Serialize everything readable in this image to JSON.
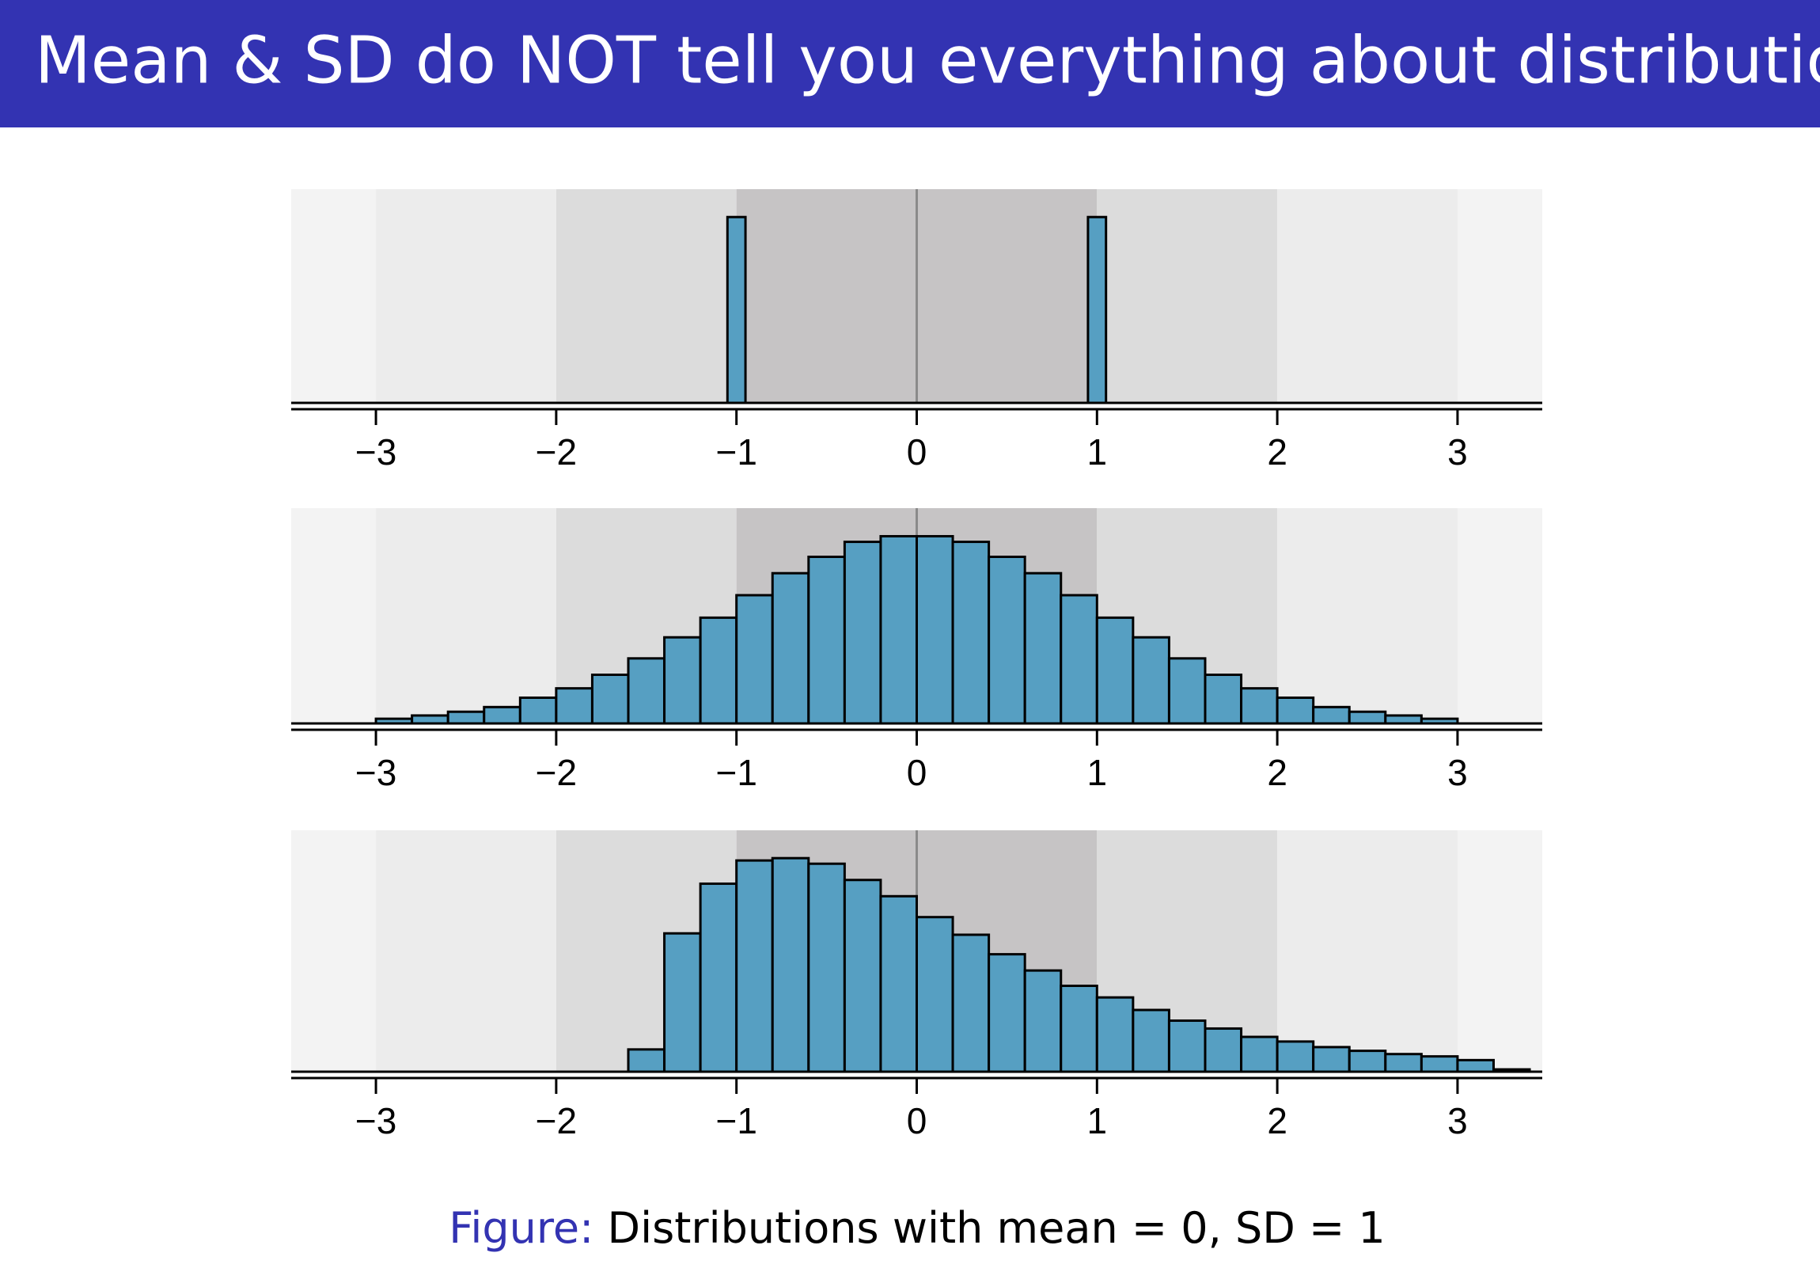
{
  "slide_title": "Mean & SD do NOT tell you everything about distribution",
  "caption": {
    "label": "Figure:",
    "text": "Distributions with mean = 0, SD = 1"
  },
  "chart_data": [
    {
      "type": "histogram",
      "color": "#569fc2",
      "bins": [
        -1.05,
        -0.95,
        -0.85,
        -0.75,
        -0.65,
        -0.55,
        -0.45,
        -0.35,
        -0.25,
        -0.15,
        -0.05,
        0.05,
        0.15,
        0.25,
        0.35,
        0.45,
        0.55,
        0.65,
        0.75,
        0.85,
        0.95,
        1.05
      ],
      "values": [
        0.4,
        0,
        0,
        0,
        0,
        0,
        0,
        0,
        0,
        0,
        0,
        0,
        0,
        0,
        0,
        0,
        0,
        0,
        0,
        0,
        0.4
      ],
      "xlim": [
        -3.47,
        3.47
      ],
      "ylim": [
        0,
        0.46
      ],
      "xticks": [
        {
          "value": -3,
          "label": "−3"
        },
        {
          "value": -2,
          "label": "−2"
        },
        {
          "value": -1,
          "label": "−1"
        },
        0,
        1,
        2,
        3
      ],
      "band_colors": [
        "#c6c4c5",
        "#dcdcdc",
        "#ececec",
        "#f3f3f3"
      ]
    },
    {
      "type": "histogram",
      "color": "#569fc2",
      "bins": [
        -3,
        -2.8,
        -2.6,
        -2.4,
        -2.2,
        -2,
        -1.8,
        -1.6,
        -1.4,
        -1.2,
        -1,
        -0.8,
        -0.6,
        -0.4,
        -0.2,
        0,
        0.2,
        0.4,
        0.6,
        0.8,
        1,
        1.2,
        1.4,
        1.6,
        1.8,
        2,
        2.2,
        2.4,
        2.6,
        2.8,
        3
      ],
      "values": [
        0.01,
        0.017,
        0.025,
        0.035,
        0.055,
        0.075,
        0.104,
        0.139,
        0.184,
        0.226,
        0.274,
        0.321,
        0.356,
        0.388,
        0.4,
        0.4,
        0.388,
        0.356,
        0.321,
        0.274,
        0.226,
        0.184,
        0.139,
        0.104,
        0.075,
        0.055,
        0.035,
        0.025,
        0.017,
        0.01
      ],
      "xlim": [
        -3.47,
        3.47
      ],
      "ylim": [
        0,
        0.46
      ],
      "xticks": [
        {
          "value": -3,
          "label": "−3"
        },
        {
          "value": -2,
          "label": "−2"
        },
        {
          "value": -1,
          "label": "−1"
        },
        0,
        1,
        2,
        3
      ],
      "band_colors": [
        "#c6c4c5",
        "#dcdcdc",
        "#ececec",
        "#f3f3f3"
      ]
    },
    {
      "type": "histogram",
      "color": "#569fc2",
      "bins": [
        -1.6,
        -1.4,
        -1.2,
        -1,
        -0.8,
        -0.6,
        -0.4,
        -0.2,
        0,
        0.2,
        0.4,
        0.6,
        0.8,
        1,
        1.2,
        1.4,
        1.6,
        1.8,
        2,
        2.2,
        2.4,
        2.6,
        2.8,
        3,
        3.2,
        3.4
      ],
      "values": [
        0.048,
        0.298,
        0.405,
        0.455,
        0.46,
        0.448,
        0.413,
        0.378,
        0.333,
        0.295,
        0.253,
        0.218,
        0.185,
        0.16,
        0.133,
        0.11,
        0.093,
        0.075,
        0.065,
        0.053,
        0.045,
        0.038,
        0.033,
        0.025,
        0.005
      ],
      "xlim": [
        -3.47,
        3.47
      ],
      "ylim": [
        0,
        0.52
      ],
      "xticks": [
        {
          "value": -3,
          "label": "−3"
        },
        {
          "value": -2,
          "label": "−2"
        },
        {
          "value": -1,
          "label": "−1"
        },
        0,
        1,
        2,
        3
      ],
      "band_colors": [
        "#c6c4c5",
        "#dcdcdc",
        "#ececec",
        "#f3f3f3"
      ]
    }
  ]
}
